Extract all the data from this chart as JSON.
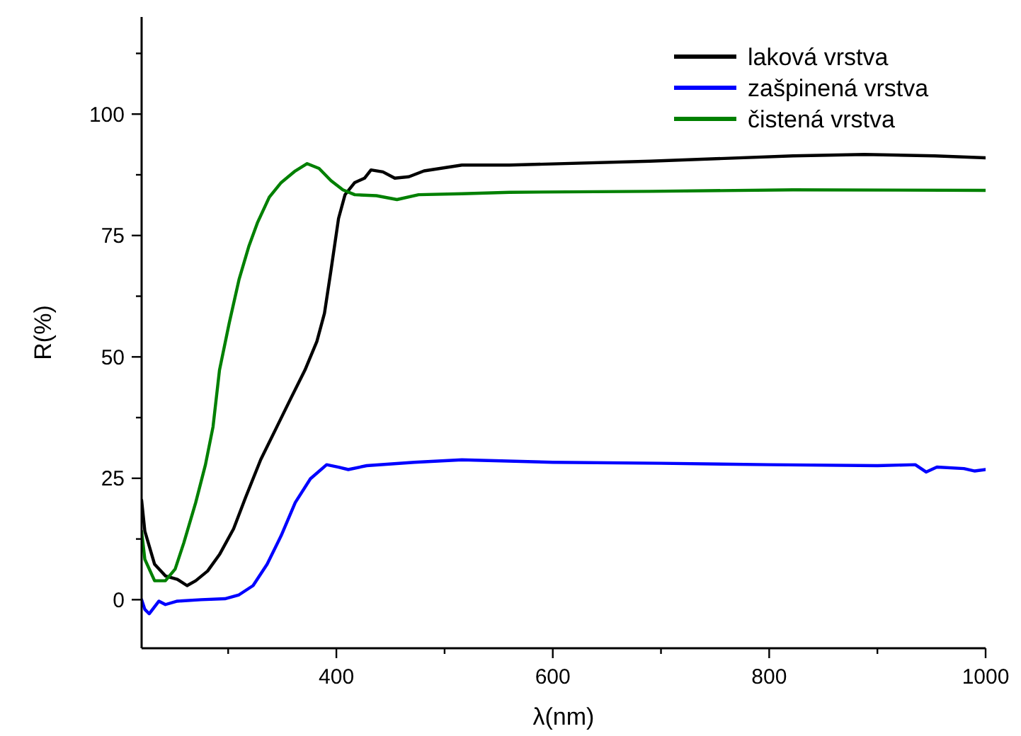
{
  "chart_data": {
    "type": "line",
    "xlabel": "λ(nm)",
    "ylabel": "R(%)",
    "xlim": [
      220,
      1000
    ],
    "ylim": [
      -10,
      120
    ],
    "xticks": [
      {
        "value": 300,
        "label": null
      },
      400,
      {
        "value": 500,
        "label": null
      },
      600,
      {
        "value": 700,
        "label": null
      },
      800,
      {
        "value": 900,
        "label": null
      },
      1000
    ],
    "yticks": [
      0,
      {
        "value": 12.5,
        "label": null
      },
      25,
      {
        "value": 37.5,
        "label": null
      },
      50,
      {
        "value": 62.5,
        "label": null
      },
      75,
      {
        "value": 87.5,
        "label": null
      },
      100,
      {
        "value": 112.5,
        "label": null
      }
    ],
    "grid": false,
    "legend": "top right",
    "line_style": "solid",
    "marker": "none",
    "series": [
      {
        "name": "laková vrstva",
        "color": "#000000",
        "x": [
          220,
          223,
          232,
          242,
          253,
          262,
          270,
          281,
          292,
          305,
          316,
          330,
          345,
          358,
          371,
          382,
          389,
          395,
          402,
          408,
          417,
          426,
          432,
          443,
          454,
          467,
          481,
          516,
          560,
          690,
          822,
          888,
          953,
          1000
        ],
        "values": [
          20.5,
          14.1,
          7.3,
          4.9,
          4.2,
          2.9,
          3.9,
          5.9,
          9.3,
          14.6,
          21,
          28.8,
          35.6,
          41.5,
          47.3,
          53.2,
          59,
          67.8,
          78.5,
          83.4,
          85.9,
          86.8,
          88.5,
          88.1,
          86.8,
          87.1,
          88.3,
          89.5,
          89.5,
          90.3,
          91.4,
          91.7,
          91.4,
          91
        ]
      },
      {
        "name": "zašpinená vrstva",
        "color": "#0000ff",
        "x": [
          220,
          223,
          227,
          236,
          242,
          253,
          275,
          297,
          310,
          323,
          336,
          349,
          362,
          376,
          391,
          402,
          411,
          428,
          472,
          516,
          600,
          700,
          800,
          900,
          935,
          945,
          955,
          980,
          990,
          1000
        ],
        "values": [
          0,
          -2,
          -2.9,
          -0.3,
          -1,
          -0.3,
          0,
          0.2,
          1,
          2.9,
          7.3,
          13.2,
          20,
          24.9,
          27.8,
          27.3,
          26.8,
          27.6,
          28.3,
          28.8,
          28.3,
          28.1,
          27.8,
          27.6,
          27.8,
          26.3,
          27.3,
          27,
          26.5,
          26.8
        ]
      },
      {
        "name": "čistená vrstva",
        "color": "#008000",
        "x": [
          220,
          223,
          232,
          242,
          251,
          259,
          270,
          279,
          286,
          292,
          301,
          310,
          319,
          327,
          338,
          349,
          362,
          373,
          384,
          395,
          406,
          417,
          437,
          456,
          476,
          516,
          560,
          690,
          822,
          1000
        ],
        "values": [
          14.1,
          8.3,
          3.9,
          3.9,
          6.3,
          11.7,
          20,
          27.8,
          35.6,
          47.3,
          57,
          65.9,
          72.7,
          77.6,
          82.9,
          85.9,
          88.3,
          89.8,
          88.8,
          86.3,
          84.4,
          83.4,
          83.2,
          82.4,
          83.4,
          83.6,
          83.9,
          84.1,
          84.4,
          84.3
        ]
      }
    ]
  }
}
